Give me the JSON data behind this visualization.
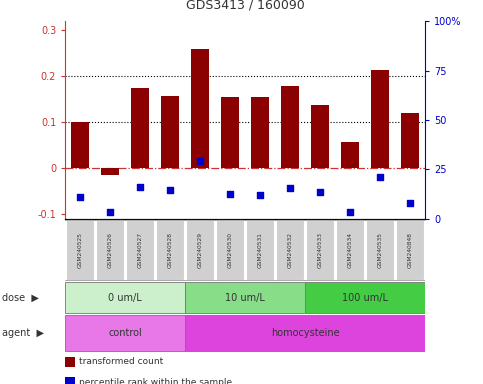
{
  "title": "GDS3413 / 160090",
  "samples": [
    "GSM240525",
    "GSM240526",
    "GSM240527",
    "GSM240528",
    "GSM240529",
    "GSM240530",
    "GSM240531",
    "GSM240532",
    "GSM240533",
    "GSM240534",
    "GSM240535",
    "GSM240848"
  ],
  "transformed_count": [
    0.1,
    -0.015,
    0.175,
    0.157,
    0.26,
    0.155,
    0.155,
    0.178,
    0.138,
    0.057,
    0.213,
    0.12
  ],
  "percentile_rank_left": [
    -0.063,
    -0.095,
    -0.04,
    -0.048,
    0.015,
    -0.055,
    -0.058,
    -0.043,
    -0.052,
    -0.095,
    -0.02,
    -0.075
  ],
  "bar_color": "#8B0000",
  "dot_color": "#0000CC",
  "ylim_left": [
    -0.11,
    0.32
  ],
  "ylim_right": [
    0,
    100
  ],
  "yticks_left": [
    -0.1,
    0.0,
    0.1,
    0.2,
    0.3
  ],
  "yticks_right": [
    0,
    25,
    50,
    75,
    100
  ],
  "ytick_labels_right": [
    "0",
    "25",
    "50",
    "75",
    "100%"
  ],
  "hlines": [
    0.1,
    0.2
  ],
  "dose_groups": [
    {
      "label": "0 um/L",
      "start": 0,
      "end": 4,
      "color": "#ccf0cc"
    },
    {
      "label": "10 um/L",
      "start": 4,
      "end": 8,
      "color": "#88dd88"
    },
    {
      "label": "100 um/L",
      "start": 8,
      "end": 12,
      "color": "#44cc44"
    }
  ],
  "agent_groups": [
    {
      "label": "control",
      "start": 0,
      "end": 4,
      "color": "#e878e8"
    },
    {
      "label": "homocysteine",
      "start": 4,
      "end": 12,
      "color": "#dd44dd"
    }
  ],
  "legend_items": [
    {
      "label": "transformed count",
      "color": "#8B0000"
    },
    {
      "label": "percentile rank within the sample",
      "color": "#0000CC"
    }
  ],
  "background_color": "#ffffff",
  "sample_box_color": "#d0d0d0",
  "zero_line_color": "#cc3333",
  "grid_line_color": "#000000",
  "row_label_color": "#333333"
}
